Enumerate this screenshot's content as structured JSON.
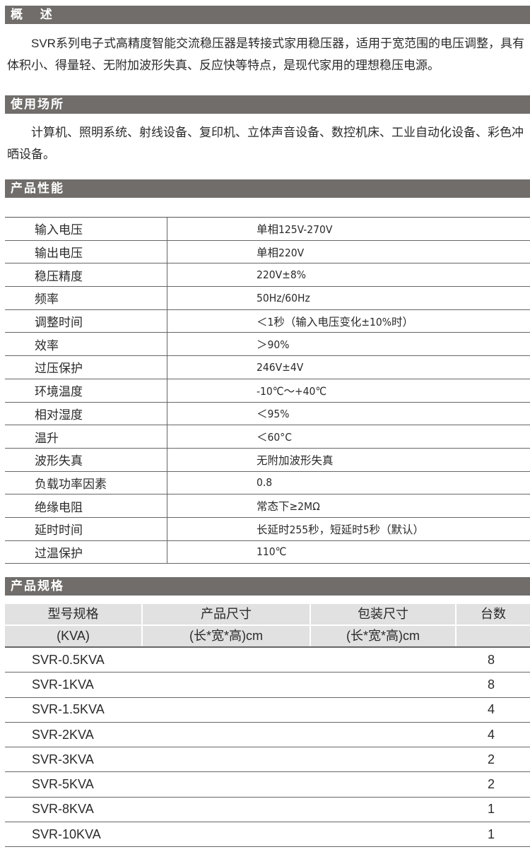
{
  "sections": {
    "overview": {
      "title": "概 述",
      "text": "SVR系列电子式高精度智能交流稳压器是转接式家用稳压器，适用于宽范围的电压调整，具有体积小、得量轻、无附加波形失真、反应快等特点，是现代家用的理想稳压电源。"
    },
    "usage": {
      "title": "使用场所",
      "text": "计算机、照明系统、射线设备、复印机、立体声音设备、数控机床、工业自动化设备、彩色冲晒设备。"
    },
    "performance": {
      "title": "产品性能",
      "rows": [
        {
          "k": "输入电压",
          "v": "单相125V-270V"
        },
        {
          "k": "输出电压",
          "v": "单相220V"
        },
        {
          "k": "稳压精度",
          "v": "220V±8%"
        },
        {
          "k": "频率",
          "v": "50Hz/60Hz"
        },
        {
          "k": "调整时间",
          "v": "＜1秒（输入电压变化±10%时）"
        },
        {
          "k": "效率",
          "v": "＞90%"
        },
        {
          "k": "过压保护",
          "v": "246V±4V"
        },
        {
          "k": "环境温度",
          "v": "-10℃～+40℃"
        },
        {
          "k": "相对湿度",
          "v": "＜95%"
        },
        {
          "k": "温升",
          "v": "＜60°C"
        },
        {
          "k": "波形失真",
          "v": "无附加波形失真"
        },
        {
          "k": "负载功率因素",
          "v": "0.8"
        },
        {
          "k": "绝缘电阻",
          "v": "常态下≥2MΩ"
        },
        {
          "k": "延时时间",
          "v": "长延时255秒，短延时5秒（默认）"
        },
        {
          "k": "过温保护",
          "v": "110℃"
        }
      ]
    },
    "specs": {
      "title": "产品规格",
      "header1": [
        "型号规格",
        "产品尺寸",
        "包装尺寸",
        "台数"
      ],
      "header2": [
        "(KVA)",
        "(长*宽*高)cm",
        "(长*宽*高)cm",
        ""
      ],
      "rows": [
        {
          "model": "SVR-0.5KVA",
          "qty": "8"
        },
        {
          "model": "SVR-1KVA",
          "qty": "8"
        },
        {
          "model": "SVR-1.5KVA",
          "qty": "4"
        },
        {
          "model": "SVR-2KVA",
          "qty": "4"
        },
        {
          "model": "SVR-3KVA",
          "qty": "2"
        },
        {
          "model": "SVR-5KVA",
          "qty": "2"
        },
        {
          "model": "SVR-8KVA",
          "qty": "1"
        },
        {
          "model": "SVR-10KVA",
          "qty": "1"
        }
      ]
    }
  },
  "colors": {
    "section_bar": "#706d6a",
    "table_header": "#e1e1e1"
  }
}
